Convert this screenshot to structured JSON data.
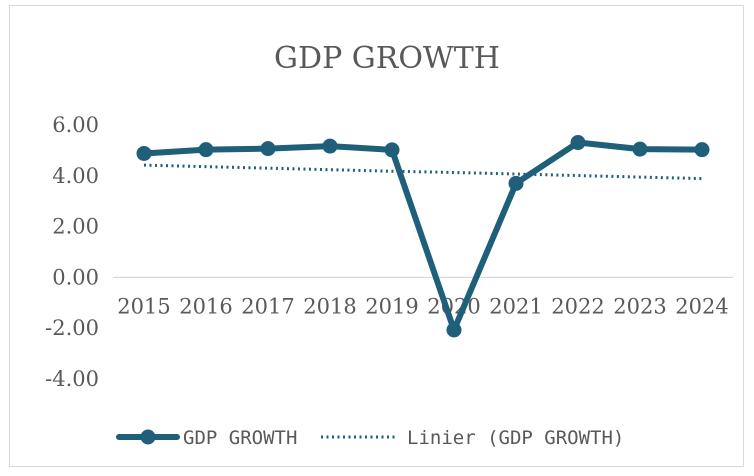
{
  "chart_data": {
    "type": "line",
    "title": "GDP GROWTH",
    "categories": [
      "2015",
      "2016",
      "2017",
      "2018",
      "2019",
      "2020",
      "2021",
      "2022",
      "2023",
      "2024"
    ],
    "series": [
      {
        "name": "GDP GROWTH",
        "values": [
          4.88,
          5.03,
          5.07,
          5.17,
          5.02,
          -2.07,
          3.7,
          5.31,
          5.05,
          5.03
        ],
        "color": "#1F5F7A",
        "style": "solid-with-markers"
      },
      {
        "name": "Linier (GDP GROWTH)",
        "values": [
          4.42,
          4.36,
          4.3,
          4.24,
          4.18,
          4.13,
          4.07,
          4.01,
          3.95,
          3.89
        ],
        "color": "#1F5F7A",
        "style": "dotted-trendline"
      }
    ],
    "y_ticks": [
      "6.00",
      "4.00",
      "2.00",
      "0.00",
      "-2.00",
      "-4.00"
    ],
    "ylim": [
      -4,
      6
    ],
    "grid": false,
    "legend_position": "bottom"
  }
}
